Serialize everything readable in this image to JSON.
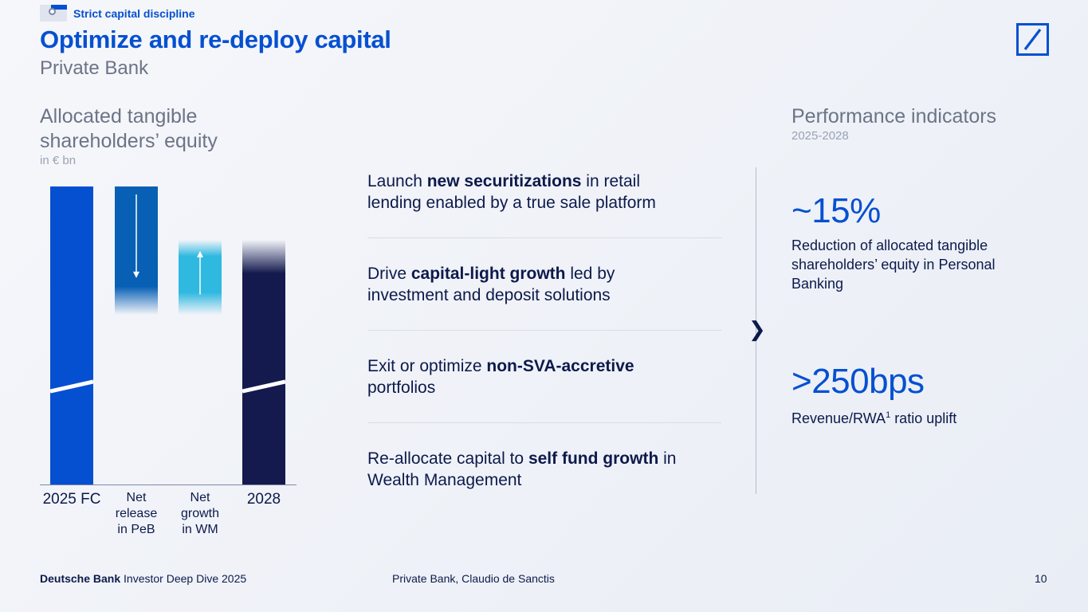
{
  "header": {
    "tag_label": "Strict capital discipline",
    "title": "Optimize and re-deploy capital",
    "subtitle": "Private Bank"
  },
  "chart_data": {
    "type": "bar",
    "title": "Allocated tangible shareholders’ equity",
    "unit": "in € bn",
    "categories": [
      "2025 FC",
      "Net release in PeB",
      "Net growth in WM",
      "2028"
    ],
    "category_lines": [
      [
        "2025 FC"
      ],
      [
        "Net",
        "release",
        "in PeB"
      ],
      [
        "Net",
        "growth",
        "in WM"
      ],
      [
        "2028"
      ]
    ],
    "bars": [
      {
        "category": "2025 FC",
        "kind": "total",
        "relative_value": 1.0,
        "color": "#0550d1"
      },
      {
        "category": "Net release in PeB",
        "kind": "decrease",
        "relative_start": 1.0,
        "relative_end": 0.65,
        "color": "#0760b4"
      },
      {
        "category": "Net growth in WM",
        "kind": "increase",
        "relative_start": 0.65,
        "relative_end": 0.82,
        "color": "#2fb8e0"
      },
      {
        "category": "2028",
        "kind": "total",
        "relative_value": 0.82,
        "color": "#141a4e"
      }
    ],
    "axis_break": true,
    "values_shown": false
  },
  "levers": [
    {
      "pre": "Launch ",
      "bold": "new securitizations",
      "post_line1": " in retail",
      "line2": "lending enabled by a true sale platform"
    },
    {
      "pre": "Drive ",
      "bold": "capital-light growth",
      "post_line1": " led by",
      "line2": "investment and deposit solutions"
    },
    {
      "pre": "Exit or optimize ",
      "bold": "non-SVA-accretive",
      "post_line1": "",
      "line2": "portfolios"
    },
    {
      "pre": "Re-allocate capital to ",
      "bold": "self fund growth",
      "post_line1": " in",
      "line2": "Wealth Management"
    }
  ],
  "performance": {
    "heading": "Performance indicators",
    "period": "2025-2028",
    "kpis": [
      {
        "value": "~15%",
        "desc_lines": [
          "Reduction of allocated tangible",
          "shareholders’ equity in Personal",
          "Banking"
        ]
      },
      {
        "value": ">250bps",
        "desc_pre": "Revenue/RWA",
        "desc_sup": "1",
        "desc_post": " ratio uplift"
      }
    ]
  },
  "footer": {
    "brand": "Deutsche Bank",
    "event": " Investor Deep Dive 2025",
    "center": "Private Bank, Claudio de Sanctis",
    "page": "10"
  },
  "colors": {
    "accent": "#0550d1",
    "dark": "#141a4e",
    "text": "#0c1a4b",
    "muted": "#6b7486"
  }
}
